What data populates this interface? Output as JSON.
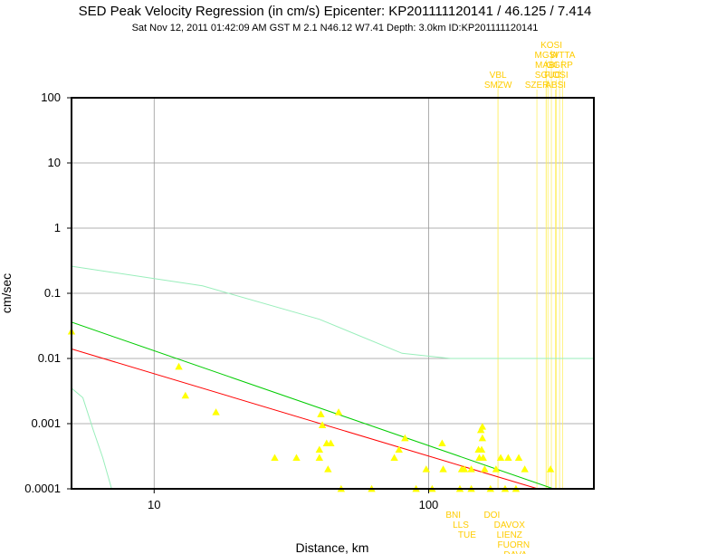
{
  "chart_data": {
    "type": "scatter",
    "title": "SED Peak Velocity Regression (in cm/s) Epicenter: KP201111120141 / 46.125 / 7.414",
    "subtitle": "Sat Nov 12, 2011 01:42:09 AM GST   M 2.1   N46.12 W7.41   Depth: 3.0km   ID:KP201111120141",
    "xlabel": "Distance, km",
    "ylabel": "cm/sec",
    "xscale": "log",
    "yscale": "log",
    "xlim": [
      5,
      400
    ],
    "ylim": [
      0.0001,
      100
    ],
    "x_ticks": [
      {
        "value": 10,
        "label": "10"
      },
      {
        "value": 100,
        "label": "100"
      }
    ],
    "y_ticks": [
      {
        "value": 100,
        "label": "100"
      },
      {
        "value": 10,
        "label": "10"
      },
      {
        "value": 1,
        "label": "1"
      },
      {
        "value": 0.1,
        "label": "0.1"
      },
      {
        "value": 0.01,
        "label": "0.01"
      },
      {
        "value": 0.001,
        "label": "0.001"
      },
      {
        "value": 0.0001,
        "label": "0.0001"
      }
    ],
    "grid": true,
    "colors": {
      "points": "#ffff00",
      "regression_red": "#ff0000",
      "regression_green": "#00cc00",
      "bound_light": "#99eebb",
      "station_lines": "#ffee55",
      "station_labels": "#ffcc00"
    },
    "lines": [
      {
        "color": "#ff0000",
        "x": [
          5,
          250
        ],
        "y": [
          0.014,
          0.0001
        ]
      },
      {
        "color": "#00cc00",
        "x": [
          5,
          285
        ],
        "y": [
          0.036,
          0.0001
        ]
      },
      {
        "color": "#99eebb",
        "x": [
          5,
          15,
          40,
          80,
          120,
          200,
          400
        ],
        "y": [
          0.26,
          0.13,
          0.04,
          0.012,
          0.01,
          0.01,
          0.01
        ]
      },
      {
        "color": "#99eebb",
        "x": [
          5,
          5.5,
          6,
          6.5,
          7
        ],
        "y": [
          0.0035,
          0.0025,
          0.0008,
          0.0003,
          0.0001
        ]
      }
    ],
    "points": [
      {
        "x": 5,
        "y": 0.026
      },
      {
        "x": 12.3,
        "y": 0.0075
      },
      {
        "x": 13,
        "y": 0.0027
      },
      {
        "x": 16.8,
        "y": 0.0015
      },
      {
        "x": 27.5,
        "y": 0.0003
      },
      {
        "x": 33,
        "y": 0.0003
      },
      {
        "x": 40,
        "y": 0.0003
      },
      {
        "x": 40,
        "y": 0.0004
      },
      {
        "x": 40.5,
        "y": 0.0014
      },
      {
        "x": 41,
        "y": 0.00095
      },
      {
        "x": 42.5,
        "y": 0.0005
      },
      {
        "x": 44,
        "y": 0.0005
      },
      {
        "x": 43,
        "y": 0.0002
      },
      {
        "x": 47,
        "y": 0.0015
      },
      {
        "x": 48,
        "y": 0.0001
      },
      {
        "x": 62,
        "y": 0.0001
      },
      {
        "x": 75,
        "y": 0.0003
      },
      {
        "x": 78,
        "y": 0.0004
      },
      {
        "x": 82,
        "y": 0.0006
      },
      {
        "x": 90,
        "y": 0.0001
      },
      {
        "x": 98,
        "y": 0.0002
      },
      {
        "x": 103,
        "y": 0.0001
      },
      {
        "x": 112,
        "y": 0.0005
      },
      {
        "x": 113,
        "y": 0.0002
      },
      {
        "x": 130,
        "y": 0.0001
      },
      {
        "x": 132,
        "y": 0.0002
      },
      {
        "x": 135,
        "y": 0.0002
      },
      {
        "x": 143,
        "y": 0.0002
      },
      {
        "x": 143,
        "y": 0.0001
      },
      {
        "x": 152,
        "y": 0.0004
      },
      {
        "x": 153,
        "y": 0.0003
      },
      {
        "x": 155,
        "y": 0.0008
      },
      {
        "x": 157,
        "y": 0.0009
      },
      {
        "x": 156,
        "y": 0.0004
      },
      {
        "x": 157,
        "y": 0.0006
      },
      {
        "x": 158,
        "y": 0.0003
      },
      {
        "x": 160,
        "y": 0.0002
      },
      {
        "x": 168,
        "y": 0.0001
      },
      {
        "x": 176,
        "y": 0.0002
      },
      {
        "x": 183,
        "y": 0.0003
      },
      {
        "x": 190,
        "y": 0.0001
      },
      {
        "x": 195,
        "y": 0.0003
      },
      {
        "x": 208,
        "y": 0.0001
      },
      {
        "x": 213,
        "y": 0.0003
      },
      {
        "x": 224,
        "y": 0.0002
      },
      {
        "x": 278,
        "y": 0.0002
      }
    ],
    "station_labels_top": [
      {
        "label": "KOSI",
        "x": 280,
        "row": 0
      },
      {
        "label": "MGSI",
        "x": 268,
        "row": 1
      },
      {
        "label": "WTTA",
        "x": 308,
        "row": 1
      },
      {
        "label": "MABI",
        "x": 268,
        "row": 2
      },
      {
        "label": "GGRP",
        "x": 300,
        "row": 2
      },
      {
        "label": "VBL",
        "x": 179,
        "row": 3
      },
      {
        "label": "SGUC",
        "x": 272,
        "row": 3
      },
      {
        "label": "FIOSI",
        "x": 292,
        "row": 3
      },
      {
        "label": "SMZW",
        "x": 179,
        "row": 4
      },
      {
        "label": "SZER",
        "x": 248,
        "row": 4
      },
      {
        "label": "ABSI",
        "x": 290,
        "row": 4
      }
    ],
    "station_labels_bottom": [
      {
        "label": "BNI",
        "x": 123,
        "row": 0
      },
      {
        "label": "DOI",
        "x": 170,
        "row": 0
      },
      {
        "label": "LLS",
        "x": 131,
        "row": 1
      },
      {
        "label": "DAVOX",
        "x": 197,
        "row": 1
      },
      {
        "label": "TUE",
        "x": 138,
        "row": 2
      },
      {
        "label": "LIENZ",
        "x": 197,
        "row": 2
      },
      {
        "label": "FUORN",
        "x": 204,
        "row": 3
      },
      {
        "label": "DAVA",
        "x": 207,
        "row": 4
      }
    ]
  }
}
